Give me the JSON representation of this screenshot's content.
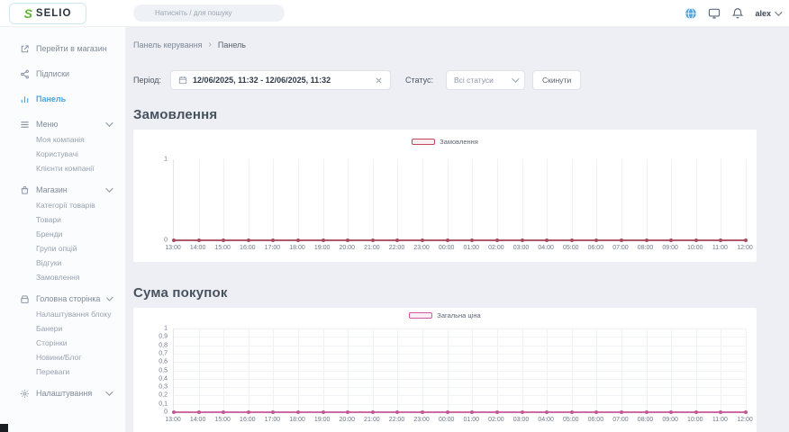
{
  "theme": {
    "accent": "#49a5e2"
  },
  "header": {
    "logo_s": "S",
    "logo_text": "SELIO",
    "search_placeholder": "Натисніть / для пошуку",
    "user": "alex"
  },
  "sidebar": {
    "store_link": "Перейти в магазин",
    "sections": [
      {
        "label": "Підписки"
      },
      {
        "label": "Панель"
      },
      {
        "label": "Меню",
        "children": [
          "Моя компанія",
          "Користувачі",
          "Клієнти компанії"
        ]
      },
      {
        "label": "Магазин",
        "children": [
          "Категорії товарів",
          "Товари",
          "Бренди",
          "Групи опцій",
          "Відгуки",
          "Замовлення"
        ]
      },
      {
        "label": "Головна сторінка",
        "children": [
          "Налаштування блоку",
          "Банери",
          "Сторінки",
          "Новини/Блог",
          "Переваги"
        ]
      },
      {
        "label": "Налаштування"
      }
    ]
  },
  "breadcrumb": {
    "items": [
      "Панель керування",
      "Панель"
    ],
    "separator": "›"
  },
  "filters": {
    "period_label": "Період:",
    "period_value": "12/06/2025, 11:32 - 12/06/2025, 11:32",
    "status_label": "Статус:",
    "status_value": "Всі статуси",
    "reset_label": "Скинути"
  },
  "chart_data": [
    {
      "type": "line",
      "title": "Замовлення",
      "legend": "Замовлення",
      "line_color": "#b2586c",
      "dot_color": "#a64a5f",
      "legend_border": "#c2475c",
      "legend_fill": "#f8eef0",
      "x": [
        "13:00",
        "14:00",
        "15:00",
        "16:00",
        "17:00",
        "18:00",
        "19:00",
        "20:00",
        "21:00",
        "22:00",
        "23:00",
        "00:00",
        "01:00",
        "02:00",
        "03:00",
        "04:00",
        "05:00",
        "06:00",
        "07:00",
        "08:00",
        "09:00",
        "10:00",
        "11:00",
        "12:00"
      ],
      "values": [
        0,
        0,
        0,
        0,
        0,
        0,
        0,
        0,
        0,
        0,
        0,
        0,
        0,
        0,
        0,
        0,
        0,
        0,
        0,
        0,
        0,
        0,
        0,
        0
      ],
      "ylim": [
        0,
        1
      ],
      "yticks": [
        {
          "label": "1",
          "value": 1
        },
        {
          "label": "0",
          "value": 0
        }
      ],
      "grid_horizontal": false,
      "legend_position": "top-center"
    },
    {
      "type": "line",
      "title": "Сума покупок",
      "legend": "Загальна ціна",
      "line_color": "#ce6aa4",
      "dot_color": "#c05a96",
      "legend_border": "#cf5a9e",
      "legend_fill": "#faeef5",
      "x": [
        "13:00",
        "14:00",
        "15:00",
        "16:00",
        "17:00",
        "18:00",
        "19:00",
        "20:00",
        "21:00",
        "22:00",
        "23:00",
        "00:00",
        "01:00",
        "02:00",
        "03:00",
        "04:00",
        "05:00",
        "06:00",
        "07:00",
        "08:00",
        "09:00",
        "10:00",
        "11:00",
        "12:00"
      ],
      "values": [
        0,
        0,
        0,
        0,
        0,
        0,
        0,
        0,
        0,
        0,
        0,
        0,
        0,
        0,
        0,
        0,
        0,
        0,
        0,
        0,
        0,
        0,
        0,
        0
      ],
      "ylim": [
        0,
        1
      ],
      "yticks": [
        {
          "label": "1",
          "value": 1
        },
        {
          "label": "0,9",
          "value": 0.9
        },
        {
          "label": "0,8",
          "value": 0.8
        },
        {
          "label": "0,7",
          "value": 0.7
        },
        {
          "label": "0,6",
          "value": 0.6
        },
        {
          "label": "0,5",
          "value": 0.5
        },
        {
          "label": "0,4",
          "value": 0.4
        },
        {
          "label": "0,3",
          "value": 0.3
        },
        {
          "label": "0,2",
          "value": 0.2
        },
        {
          "label": "0,1",
          "value": 0.1
        },
        {
          "label": "0",
          "value": 0
        }
      ],
      "grid_horizontal": true,
      "legend_position": "top-center"
    }
  ]
}
